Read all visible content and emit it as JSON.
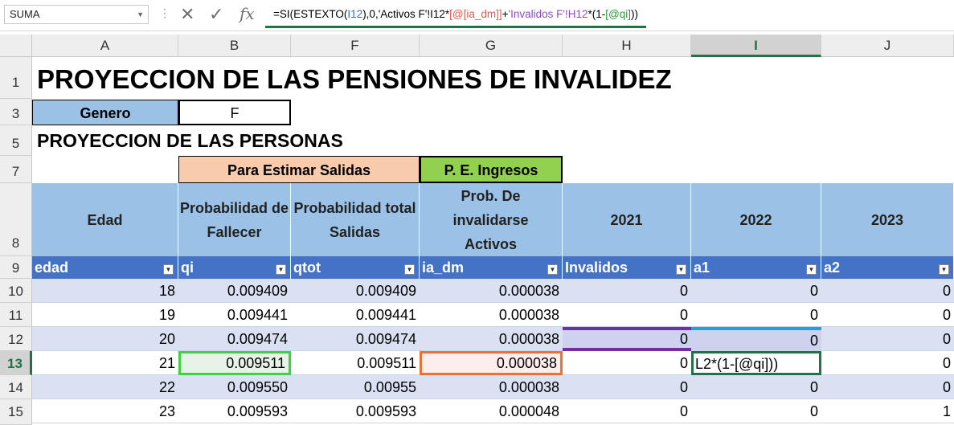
{
  "namebox": {
    "value": "SUMA"
  },
  "formula_bar": {
    "fx_label": "fx",
    "parts": [
      {
        "text": "=SI(ESTEXTO(",
        "color": ""
      },
      {
        "text": "I12",
        "color": "blue"
      },
      {
        "text": "),0,'Activos F'!I12*",
        "color": ""
      },
      {
        "text": "[@[ia_dm]]",
        "color": "red"
      },
      {
        "text": "+",
        "color": ""
      },
      {
        "text": "'Invalidos F'!H12",
        "color": "purple"
      },
      {
        "text": "*(1-",
        "color": ""
      },
      {
        "text": "[@qi]",
        "color": "green"
      },
      {
        "text": "))",
        "color": ""
      }
    ]
  },
  "columns": [
    "A",
    "B",
    "F",
    "G",
    "H",
    "I",
    "J"
  ],
  "selected_column": "I",
  "rows": {
    "r1": "1",
    "r3": "3",
    "r5": "5",
    "r7": "7",
    "r8": "8",
    "r9": "9",
    "data": [
      "10",
      "11",
      "12",
      "13",
      "14",
      "15"
    ],
    "selected": "13"
  },
  "title": "PROYECCION DE LAS PENSIONES DE INVALIDEZ",
  "genero": {
    "label": "Genero",
    "value": "F"
  },
  "subtitle": "PROYECCION DE LAS PERSONAS",
  "group_headers": {
    "salidas": "Para Estimar Salidas",
    "ingresos": "P. E. Ingresos"
  },
  "colors": {
    "accent": "#217346",
    "header_blue": "#9bc2e6",
    "table_blue": "#4472c4",
    "salidas": "#f8cbad",
    "ingresos": "#92d050"
  },
  "header_labels": [
    "Edad",
    "Probabilidad de Fallecer",
    "Probabilidad total Salidas",
    "Prob. De invalidarse Activos",
    "2021",
    "2022",
    "2023"
  ],
  "table_headers": [
    "edad",
    "qi",
    "qtot",
    "ia_dm",
    "Invalidos",
    "a1",
    "a2"
  ],
  "data_rows": [
    [
      "18",
      "0.009409",
      "0.009409",
      "0.000038",
      "0",
      "0",
      "0"
    ],
    [
      "19",
      "0.009441",
      "0.009441",
      "0.000038",
      "0",
      "0",
      "0"
    ],
    [
      "20",
      "0.009474",
      "0.009474",
      "0.000038",
      "0",
      "0",
      "0"
    ],
    [
      "21",
      "0.009511",
      "0.009511",
      "0.000038",
      "0",
      "L2*(1-[@qi]))",
      "0"
    ],
    [
      "22",
      "0.009550",
      "0.00955",
      "0.000038",
      "0",
      "0",
      "0"
    ],
    [
      "23",
      "0.009593",
      "0.009593",
      "0.000048",
      "0",
      "0",
      "1"
    ]
  ]
}
